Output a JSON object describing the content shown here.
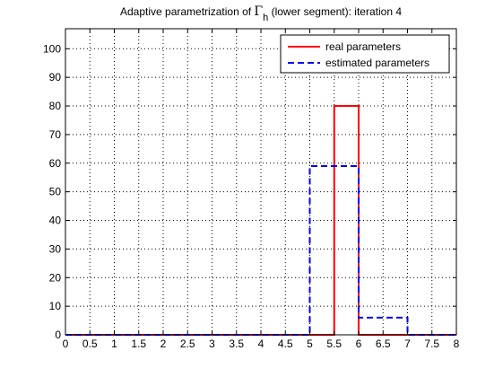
{
  "chart_data": {
    "type": "line",
    "title": {
      "prefix": "Adaptive parametrization of ",
      "symbol": "Γ",
      "subscript": "h",
      "suffix": " (lower segment): iteration 4"
    },
    "xlabel": "",
    "ylabel": "",
    "xlim": [
      0,
      8
    ],
    "ylim": [
      0,
      107
    ],
    "xticks": [
      0,
      0.5,
      1,
      1.5,
      2,
      2.5,
      3,
      3.5,
      4,
      4.5,
      5,
      5.5,
      6,
      6.5,
      7,
      7.5,
      8
    ],
    "yticks": [
      0,
      10,
      20,
      30,
      40,
      50,
      60,
      70,
      80,
      90,
      100
    ],
    "grid": true,
    "legend_position": "top-right",
    "series": [
      {
        "name": "real parameters",
        "color": "#ff0000",
        "style": "solid",
        "x": [
          0,
          5.5,
          5.5,
          6,
          6,
          8
        ],
        "y": [
          0,
          0,
          80,
          80,
          0,
          0
        ]
      },
      {
        "name": "estimated parameters",
        "color": "#0000ff",
        "style": "dashed",
        "x": [
          0,
          5,
          5,
          6,
          6,
          7,
          7,
          8
        ],
        "y": [
          0,
          0,
          59,
          59,
          6,
          6,
          0,
          0
        ]
      }
    ]
  }
}
